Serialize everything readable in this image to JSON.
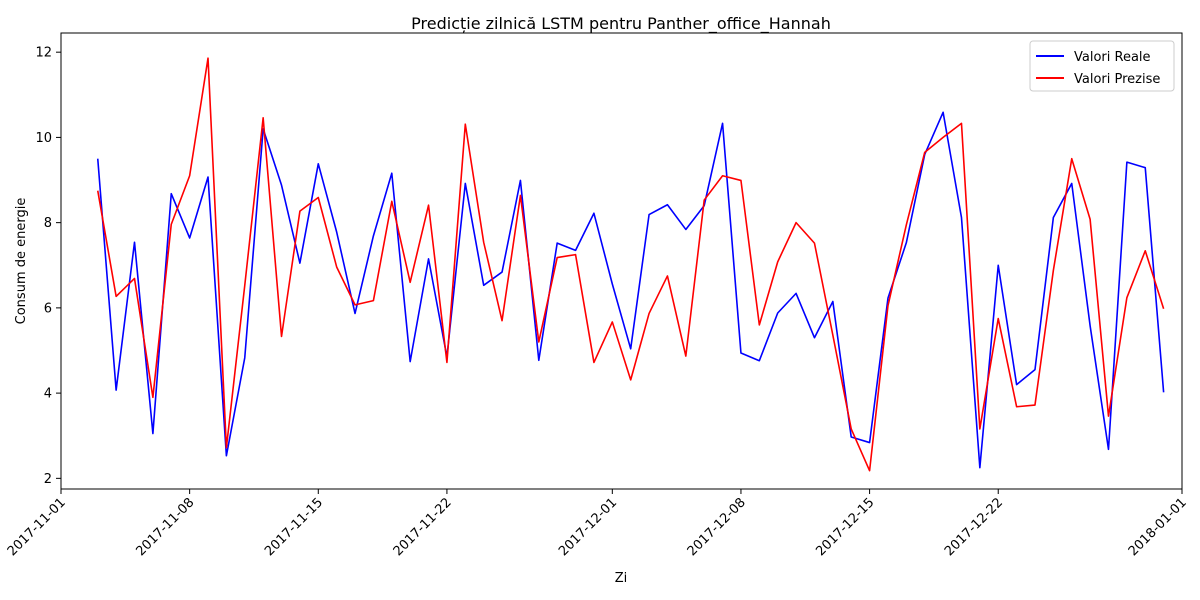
{
  "chart_data": {
    "type": "line",
    "title": "Predicție zilnică LSTM pentru Panther_office_Hannah",
    "xlabel": "Zi",
    "ylabel": "Consum de energie",
    "x_start": "2017-11-03",
    "xlim_days": [
      -2.0,
      59.0
    ],
    "ylim": [
      1.75,
      12.45
    ],
    "x_ticks": [
      {
        "label": "2017-11-01",
        "day": -2
      },
      {
        "label": "2017-11-08",
        "day": 5
      },
      {
        "label": "2017-11-15",
        "day": 12
      },
      {
        "label": "2017-11-22",
        "day": 19
      },
      {
        "label": "2017-12-01",
        "day": 28
      },
      {
        "label": "2017-12-08",
        "day": 35
      },
      {
        "label": "2017-12-15",
        "day": 42
      },
      {
        "label": "2017-12-22",
        "day": 49
      },
      {
        "label": "2018-01-01",
        "day": 59
      }
    ],
    "y_ticks": [
      {
        "label": "2",
        "value": 2
      },
      {
        "label": "4",
        "value": 4
      },
      {
        "label": "6",
        "value": 6
      },
      {
        "label": "8",
        "value": 8
      },
      {
        "label": "10",
        "value": 10
      },
      {
        "label": "12",
        "value": 12
      }
    ],
    "legend_position": "top-right",
    "series": [
      {
        "name": "Valori Reale",
        "color": "#0000ff",
        "values": [
          9.5,
          4.07,
          7.54,
          3.05,
          8.68,
          7.64,
          9.07,
          2.53,
          4.83,
          10.2,
          8.88,
          7.05,
          9.38,
          7.78,
          5.87,
          7.69,
          9.16,
          4.74,
          7.15,
          4.85,
          8.92,
          6.53,
          6.84,
          8.99,
          4.77,
          7.52,
          7.35,
          8.22,
          6.56,
          5.04,
          8.19,
          8.42,
          7.84,
          8.4,
          10.33,
          4.94,
          4.76,
          5.88,
          6.34,
          5.3,
          6.15,
          2.97,
          2.84,
          6.23,
          7.53,
          9.6,
          10.59,
          8.12,
          2.25,
          7.0,
          4.2,
          4.55,
          8.12,
          8.92,
          5.58,
          2.68,
          9.42,
          9.29,
          4.02
        ]
      },
      {
        "name": "Valori Prezise",
        "color": "#ff0000",
        "values": [
          8.75,
          6.27,
          6.69,
          3.9,
          7.96,
          9.1,
          11.86,
          2.72,
          6.53,
          10.46,
          5.33,
          8.27,
          8.59,
          6.96,
          6.07,
          6.17,
          8.5,
          6.6,
          8.41,
          4.72,
          10.31,
          7.54,
          5.7,
          8.64,
          5.2,
          7.18,
          7.25,
          4.72,
          5.67,
          4.31,
          5.87,
          6.75,
          4.87,
          8.53,
          9.1,
          8.99,
          5.6,
          7.08,
          8.0,
          7.52,
          5.36,
          3.16,
          2.18,
          6.05,
          7.95,
          9.65,
          10.0,
          10.33,
          3.16,
          5.75,
          3.68,
          3.72,
          6.88,
          9.5,
          8.08,
          3.46,
          6.24,
          7.34,
          5.98
        ]
      }
    ]
  }
}
